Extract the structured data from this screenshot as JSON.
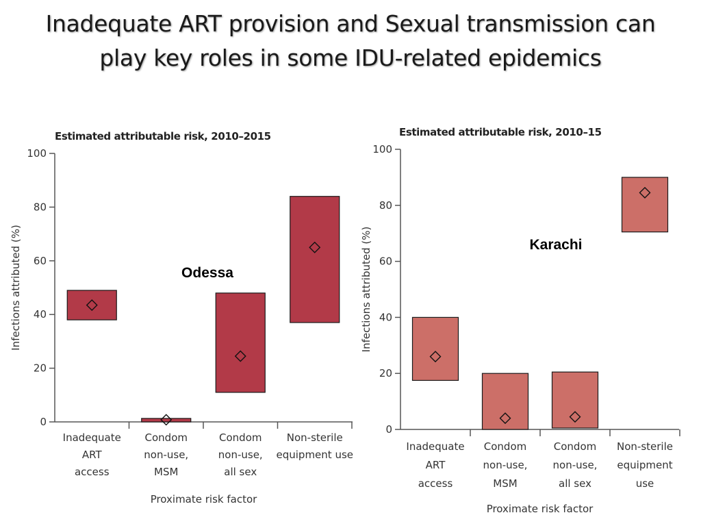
{
  "slide": {
    "title_line1": "Inadequate ART provision and Sexual transmission can",
    "title_line2": "play key roles in some IDU-related epidemics"
  },
  "chart_data": [
    {
      "type": "bar",
      "subtype": "range-bar-with-point-estimate",
      "title": "Estimated attributable risk, 2010–2015",
      "annotation": "Odessa",
      "xlabel": "Proximate risk factor",
      "ylabel": "Infections attributed (%)",
      "ylim": [
        0,
        100
      ],
      "yticks": [
        0,
        20,
        40,
        60,
        80,
        100
      ],
      "grid": false,
      "fill_color": "#b23a48",
      "categories": [
        [
          "Inadequate",
          "ART",
          "access"
        ],
        [
          "Condom",
          "non-use,",
          "MSM"
        ],
        [
          "Condom",
          "non-use,",
          "all sex"
        ],
        [
          "Non-sterile",
          "equipment use"
        ]
      ],
      "series": [
        {
          "low": 38,
          "high": 49,
          "point": 43.5
        },
        {
          "low": 0,
          "high": 1.3,
          "point": 0.8
        },
        {
          "low": 11,
          "high": 48,
          "point": 24.5
        },
        {
          "low": 37,
          "high": 84,
          "point": 65
        }
      ]
    },
    {
      "type": "bar",
      "subtype": "range-bar-with-point-estimate",
      "title": "Estimated attributable risk, 2010–15",
      "annotation": "Karachi",
      "xlabel": "Proximate risk factor",
      "ylabel": "Infections attributed (%)",
      "ylim": [
        0,
        100
      ],
      "yticks": [
        0,
        20,
        40,
        60,
        80,
        100
      ],
      "grid": false,
      "fill_color": "#cc6f68",
      "categories": [
        [
          "Inadequate",
          "ART",
          "access"
        ],
        [
          "Condom",
          "non-use,",
          "MSM"
        ],
        [
          "Condom",
          "non-use,",
          "all sex"
        ],
        [
          "Non-sterile",
          "equipment",
          "use"
        ]
      ],
      "series": [
        {
          "low": 17.5,
          "high": 40,
          "point": 26
        },
        {
          "low": 0,
          "high": 20,
          "point": 4
        },
        {
          "low": 0.5,
          "high": 20.5,
          "point": 4.5
        },
        {
          "low": 70.5,
          "high": 90,
          "point": 84.5
        }
      ]
    }
  ]
}
